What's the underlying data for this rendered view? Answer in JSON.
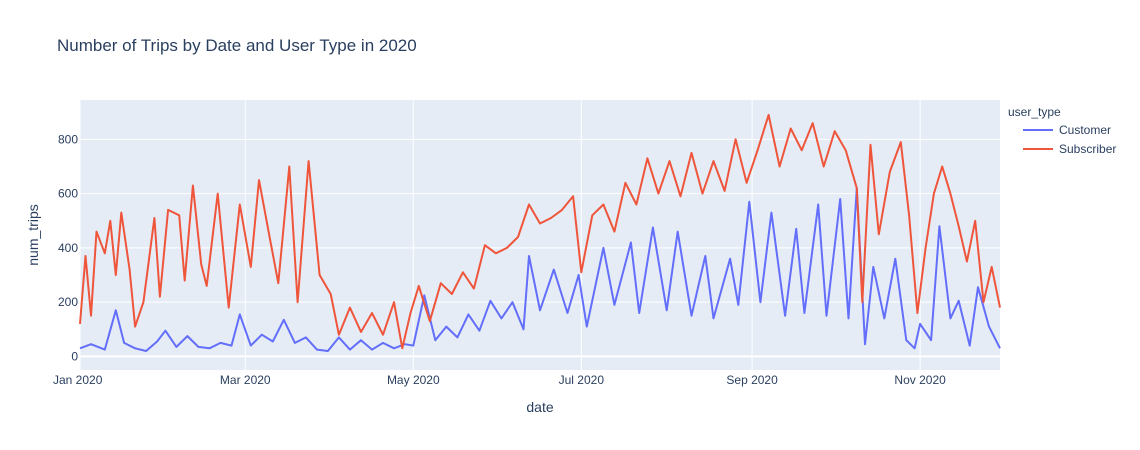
{
  "chart_data": {
    "type": "line",
    "title": "Number of Trips by Date and User Type in 2020",
    "xlabel": "date",
    "ylabel": "num_trips",
    "x_start": "2020-01-01",
    "x_end": "2020-11-30",
    "xlim": [
      "2020-01-01",
      "2020-11-30"
    ],
    "ylim": [
      -50,
      945
    ],
    "y_ticks": [
      0,
      200,
      400,
      600,
      800
    ],
    "y_tick_labels": [
      "0",
      "200",
      "400",
      "600",
      "800"
    ],
    "x_ticks": [
      "2020-01-01",
      "2020-03-01",
      "2020-05-01",
      "2020-07-01",
      "2020-09-01",
      "2020-11-01"
    ],
    "x_tick_labels": [
      "Jan 2020",
      "Mar 2020",
      "May 2020",
      "Jul 2020",
      "Sep 2020",
      "Nov 2020"
    ],
    "grid": true,
    "legend": {
      "title": "user_type",
      "position": "top-right"
    },
    "series": [
      {
        "name": "Customer",
        "color": "#636efa",
        "points": [
          [
            "2020-01-01",
            30
          ],
          [
            "2020-01-05",
            45
          ],
          [
            "2020-01-10",
            25
          ],
          [
            "2020-01-14",
            170
          ],
          [
            "2020-01-17",
            50
          ],
          [
            "2020-01-21",
            30
          ],
          [
            "2020-01-25",
            20
          ],
          [
            "2020-01-29",
            55
          ],
          [
            "2020-02-01",
            95
          ],
          [
            "2020-02-05",
            35
          ],
          [
            "2020-02-09",
            75
          ],
          [
            "2020-02-13",
            35
          ],
          [
            "2020-02-17",
            30
          ],
          [
            "2020-02-21",
            50
          ],
          [
            "2020-02-25",
            40
          ],
          [
            "2020-02-28",
            155
          ],
          [
            "2020-03-03",
            40
          ],
          [
            "2020-03-07",
            80
          ],
          [
            "2020-03-11",
            55
          ],
          [
            "2020-03-15",
            135
          ],
          [
            "2020-03-19",
            50
          ],
          [
            "2020-03-23",
            70
          ],
          [
            "2020-03-27",
            25
          ],
          [
            "2020-03-31",
            20
          ],
          [
            "2020-04-04",
            70
          ],
          [
            "2020-04-08",
            25
          ],
          [
            "2020-04-12",
            60
          ],
          [
            "2020-04-16",
            25
          ],
          [
            "2020-04-20",
            50
          ],
          [
            "2020-04-24",
            30
          ],
          [
            "2020-04-28",
            45
          ],
          [
            "2020-05-01",
            40
          ],
          [
            "2020-05-05",
            225
          ],
          [
            "2020-05-09",
            60
          ],
          [
            "2020-05-13",
            110
          ],
          [
            "2020-05-17",
            70
          ],
          [
            "2020-05-21",
            155
          ],
          [
            "2020-05-25",
            95
          ],
          [
            "2020-05-29",
            205
          ],
          [
            "2020-06-02",
            140
          ],
          [
            "2020-06-06",
            200
          ],
          [
            "2020-06-10",
            100
          ],
          [
            "2020-06-12",
            370
          ],
          [
            "2020-06-16",
            170
          ],
          [
            "2020-06-21",
            320
          ],
          [
            "2020-06-26",
            160
          ],
          [
            "2020-06-30",
            300
          ],
          [
            "2020-07-03",
            110
          ],
          [
            "2020-07-09",
            400
          ],
          [
            "2020-07-13",
            190
          ],
          [
            "2020-07-19",
            420
          ],
          [
            "2020-07-22",
            160
          ],
          [
            "2020-07-27",
            475
          ],
          [
            "2020-08-01",
            170
          ],
          [
            "2020-08-05",
            460
          ],
          [
            "2020-08-10",
            150
          ],
          [
            "2020-08-15",
            370
          ],
          [
            "2020-08-18",
            140
          ],
          [
            "2020-08-24",
            360
          ],
          [
            "2020-08-27",
            190
          ],
          [
            "2020-08-31",
            570
          ],
          [
            "2020-09-04",
            200
          ],
          [
            "2020-09-08",
            530
          ],
          [
            "2020-09-13",
            150
          ],
          [
            "2020-09-17",
            470
          ],
          [
            "2020-09-20",
            160
          ],
          [
            "2020-09-25",
            560
          ],
          [
            "2020-09-28",
            150
          ],
          [
            "2020-10-03",
            580
          ],
          [
            "2020-10-06",
            140
          ],
          [
            "2020-10-09",
            620
          ],
          [
            "2020-10-12",
            45
          ],
          [
            "2020-10-15",
            330
          ],
          [
            "2020-10-19",
            140
          ],
          [
            "2020-10-23",
            360
          ],
          [
            "2020-10-27",
            60
          ],
          [
            "2020-10-30",
            30
          ],
          [
            "2020-11-01",
            120
          ],
          [
            "2020-11-05",
            60
          ],
          [
            "2020-11-08",
            480
          ],
          [
            "2020-11-12",
            140
          ],
          [
            "2020-11-15",
            205
          ],
          [
            "2020-11-19",
            40
          ],
          [
            "2020-11-22",
            255
          ],
          [
            "2020-11-26",
            110
          ],
          [
            "2020-11-30",
            30
          ]
        ]
      },
      {
        "name": "Subscriber",
        "color": "#ef553b",
        "points": [
          [
            "2020-01-01",
            120
          ],
          [
            "2020-01-03",
            370
          ],
          [
            "2020-01-05",
            150
          ],
          [
            "2020-01-07",
            460
          ],
          [
            "2020-01-10",
            380
          ],
          [
            "2020-01-12",
            500
          ],
          [
            "2020-01-14",
            300
          ],
          [
            "2020-01-16",
            530
          ],
          [
            "2020-01-19",
            320
          ],
          [
            "2020-01-21",
            110
          ],
          [
            "2020-01-24",
            200
          ],
          [
            "2020-01-28",
            510
          ],
          [
            "2020-01-30",
            220
          ],
          [
            "2020-02-02",
            540
          ],
          [
            "2020-02-06",
            520
          ],
          [
            "2020-02-08",
            280
          ],
          [
            "2020-02-11",
            630
          ],
          [
            "2020-02-14",
            340
          ],
          [
            "2020-02-16",
            260
          ],
          [
            "2020-02-20",
            600
          ],
          [
            "2020-02-24",
            180
          ],
          [
            "2020-02-28",
            560
          ],
          [
            "2020-03-03",
            330
          ],
          [
            "2020-03-06",
            650
          ],
          [
            "2020-03-10",
            430
          ],
          [
            "2020-03-13",
            270
          ],
          [
            "2020-03-17",
            700
          ],
          [
            "2020-03-20",
            200
          ],
          [
            "2020-03-24",
            720
          ],
          [
            "2020-03-28",
            300
          ],
          [
            "2020-04-01",
            230
          ],
          [
            "2020-04-04",
            80
          ],
          [
            "2020-04-08",
            180
          ],
          [
            "2020-04-12",
            90
          ],
          [
            "2020-04-16",
            160
          ],
          [
            "2020-04-20",
            80
          ],
          [
            "2020-04-24",
            200
          ],
          [
            "2020-04-27",
            30
          ],
          [
            "2020-04-30",
            160
          ],
          [
            "2020-05-03",
            260
          ],
          [
            "2020-05-07",
            130
          ],
          [
            "2020-05-11",
            270
          ],
          [
            "2020-05-15",
            230
          ],
          [
            "2020-05-19",
            310
          ],
          [
            "2020-05-23",
            250
          ],
          [
            "2020-05-27",
            410
          ],
          [
            "2020-05-31",
            380
          ],
          [
            "2020-06-04",
            400
          ],
          [
            "2020-06-08",
            440
          ],
          [
            "2020-06-12",
            560
          ],
          [
            "2020-06-16",
            490
          ],
          [
            "2020-06-20",
            510
          ],
          [
            "2020-06-24",
            540
          ],
          [
            "2020-06-28",
            590
          ],
          [
            "2020-07-01",
            310
          ],
          [
            "2020-07-05",
            520
          ],
          [
            "2020-07-09",
            560
          ],
          [
            "2020-07-13",
            460
          ],
          [
            "2020-07-17",
            640
          ],
          [
            "2020-07-21",
            560
          ],
          [
            "2020-07-25",
            730
          ],
          [
            "2020-07-29",
            600
          ],
          [
            "2020-08-02",
            720
          ],
          [
            "2020-08-06",
            590
          ],
          [
            "2020-08-10",
            750
          ],
          [
            "2020-08-14",
            600
          ],
          [
            "2020-08-18",
            720
          ],
          [
            "2020-08-22",
            610
          ],
          [
            "2020-08-26",
            800
          ],
          [
            "2020-08-30",
            640
          ],
          [
            "2020-09-03",
            760
          ],
          [
            "2020-09-07",
            890
          ],
          [
            "2020-09-11",
            700
          ],
          [
            "2020-09-15",
            840
          ],
          [
            "2020-09-19",
            760
          ],
          [
            "2020-09-23",
            860
          ],
          [
            "2020-09-27",
            700
          ],
          [
            "2020-10-01",
            830
          ],
          [
            "2020-10-05",
            760
          ],
          [
            "2020-10-09",
            620
          ],
          [
            "2020-10-11",
            200
          ],
          [
            "2020-10-14",
            780
          ],
          [
            "2020-10-17",
            450
          ],
          [
            "2020-10-21",
            680
          ],
          [
            "2020-10-25",
            790
          ],
          [
            "2020-10-28",
            520
          ],
          [
            "2020-10-31",
            160
          ],
          [
            "2020-11-03",
            400
          ],
          [
            "2020-11-06",
            600
          ],
          [
            "2020-11-09",
            700
          ],
          [
            "2020-11-12",
            600
          ],
          [
            "2020-11-15",
            480
          ],
          [
            "2020-11-18",
            350
          ],
          [
            "2020-11-21",
            500
          ],
          [
            "2020-11-24",
            200
          ],
          [
            "2020-11-27",
            330
          ],
          [
            "2020-11-30",
            180
          ]
        ]
      }
    ]
  }
}
